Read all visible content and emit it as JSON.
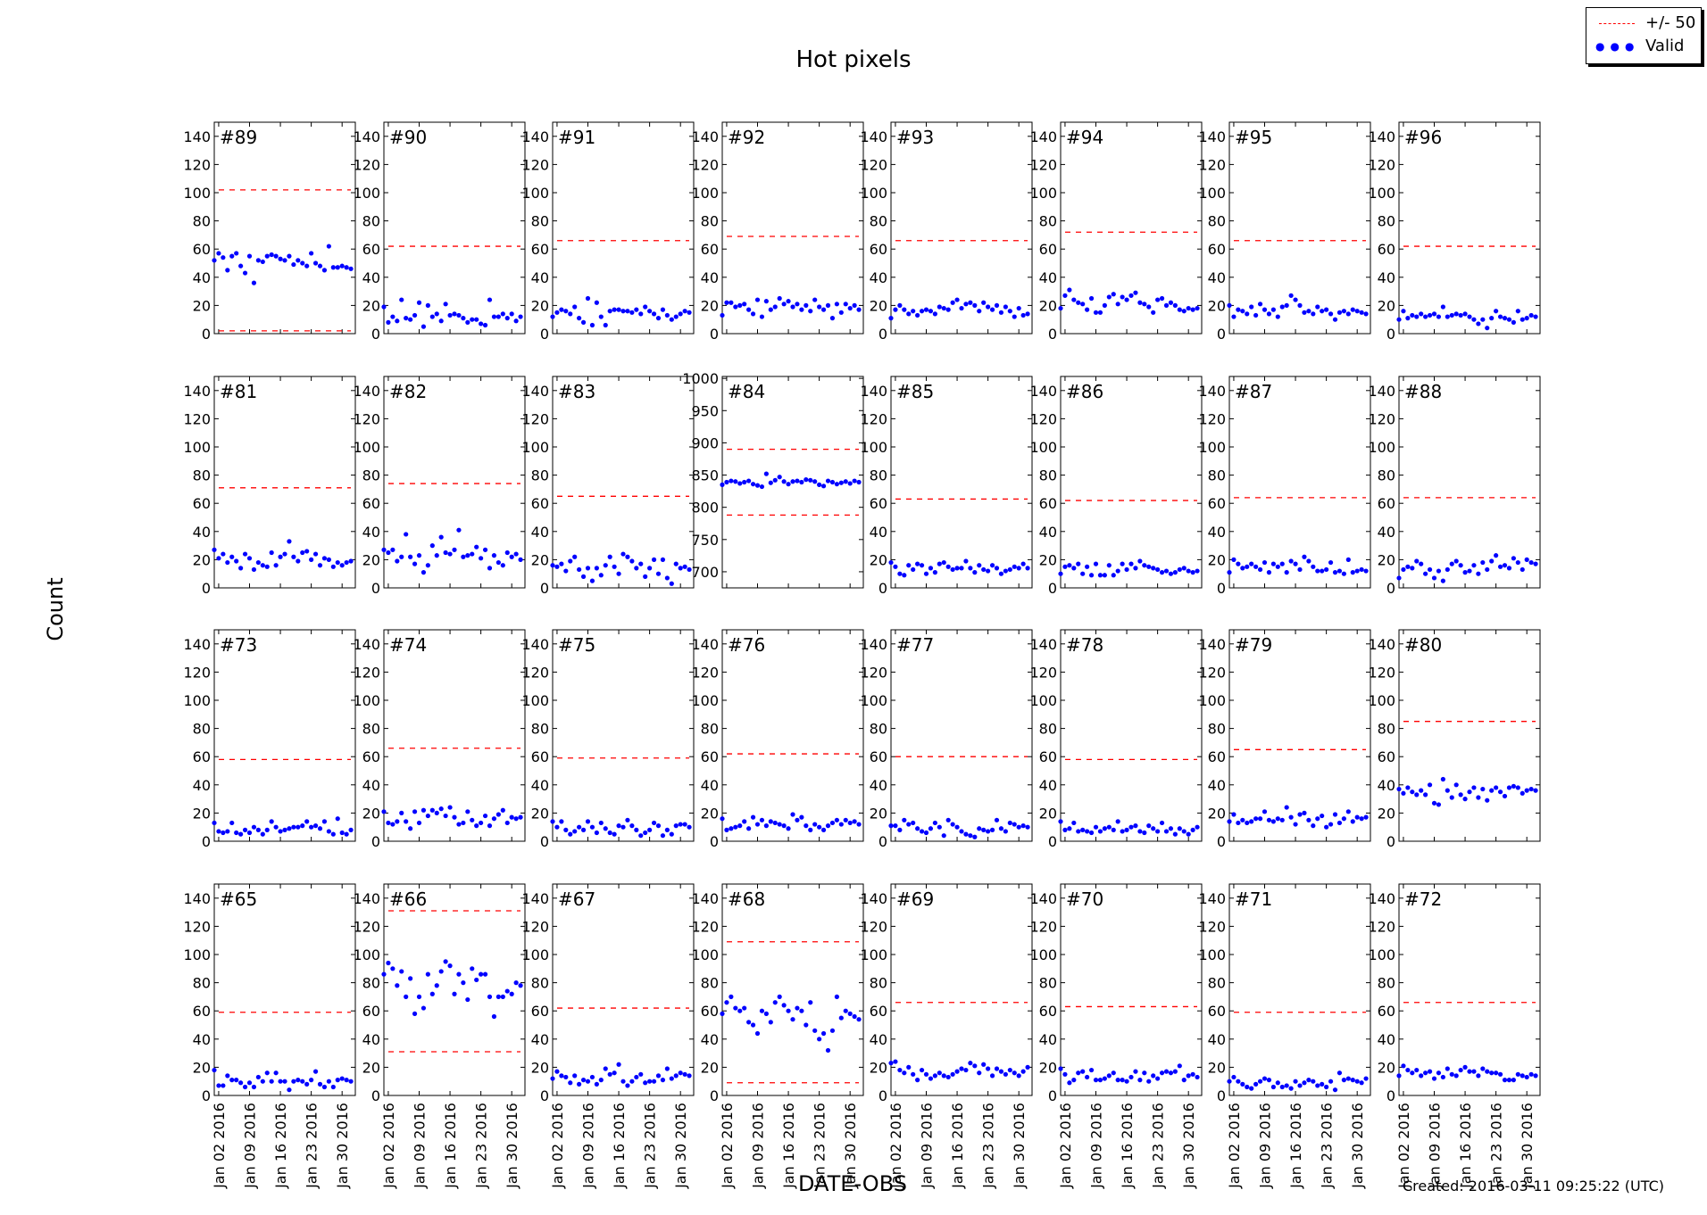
{
  "title": "Hot pixels",
  "ylabel": "Count",
  "xlabel": "DATE-OBS",
  "footer": "Created: 2016-03-11 09:25:22 (UTC)",
  "legend": {
    "threshold_label": "+/- 50",
    "valid_label": "Valid"
  },
  "colors": {
    "valid": "#0000ff",
    "threshold": "#ff0000",
    "frame": "#000000"
  },
  "chart_data": {
    "type": "scatter",
    "layout": "small multiples, 4 rows x 8 columns, shared x axis",
    "x_ticks": [
      "Jan 02 2016",
      "Jan 09 2016",
      "Jan 16 2016",
      "Jan 23 2016",
      "Jan 30 2016"
    ],
    "x_range": [
      "2016-01-01",
      "2016-02-02"
    ],
    "x_dates": [
      "2016-01-01",
      "2016-01-02",
      "2016-01-03",
      "2016-01-04",
      "2016-01-05",
      "2016-01-06",
      "2016-01-07",
      "2016-01-08",
      "2016-01-09",
      "2016-01-10",
      "2016-01-11",
      "2016-01-12",
      "2016-01-13",
      "2016-01-14",
      "2016-01-15",
      "2016-01-16",
      "2016-01-17",
      "2016-01-18",
      "2016-01-19",
      "2016-01-20",
      "2016-01-21",
      "2016-01-22",
      "2016-01-23",
      "2016-01-24",
      "2016-01-25",
      "2016-01-26",
      "2016-01-27",
      "2016-01-28",
      "2016-01-29",
      "2016-01-30",
      "2016-01-31",
      "2016-02-01"
    ],
    "default_y_ticks": [
      0,
      20,
      40,
      60,
      80,
      100,
      120,
      140
    ],
    "default_ylim": [
      0,
      150
    ],
    "panels": [
      {
        "label": "#89",
        "upper": 102,
        "lower": 2,
        "values": [
          52,
          57,
          54,
          45,
          55,
          57,
          48,
          43,
          55,
          36,
          52,
          51,
          55,
          56,
          55,
          53,
          52,
          55,
          49,
          52,
          50,
          48,
          57,
          50,
          48,
          45,
          62,
          47,
          47,
          48,
          47,
          46
        ]
      },
      {
        "label": "#90",
        "upper": 62,
        "lower": null,
        "values": [
          19,
          8,
          12,
          9,
          24,
          11,
          10,
          13,
          22,
          5,
          20,
          12,
          14,
          9,
          21,
          13,
          14,
          13,
          11,
          8,
          10,
          10,
          7,
          6,
          24,
          12,
          12,
          14,
          11,
          14,
          9,
          12
        ]
      },
      {
        "label": "#91",
        "upper": 66,
        "lower": null,
        "values": [
          12,
          15,
          17,
          16,
          14,
          19,
          11,
          8,
          25,
          6,
          22,
          12,
          6,
          16,
          17,
          17,
          16,
          16,
          15,
          17,
          14,
          19,
          16,
          14,
          11,
          17,
          13,
          10,
          12,
          14,
          16,
          15
        ]
      },
      {
        "label": "#92",
        "upper": 69,
        "lower": null,
        "values": [
          13,
          22,
          22,
          19,
          20,
          21,
          17,
          14,
          24,
          12,
          23,
          17,
          19,
          25,
          21,
          23,
          19,
          21,
          17,
          20,
          16,
          24,
          19,
          17,
          20,
          11,
          21,
          15,
          21,
          18,
          20,
          17
        ]
      },
      {
        "label": "#93",
        "upper": 66,
        "lower": null,
        "values": [
          11,
          17,
          20,
          17,
          14,
          16,
          13,
          16,
          17,
          16,
          14,
          19,
          18,
          17,
          22,
          24,
          18,
          21,
          22,
          20,
          16,
          22,
          19,
          17,
          20,
          15,
          19,
          16,
          12,
          18,
          13,
          14
        ]
      },
      {
        "label": "#94",
        "upper": 72,
        "lower": null,
        "values": [
          18,
          27,
          31,
          24,
          22,
          21,
          17,
          25,
          15,
          15,
          20,
          26,
          28,
          21,
          26,
          24,
          27,
          29,
          22,
          21,
          19,
          15,
          24,
          25,
          20,
          22,
          20,
          17,
          16,
          18,
          17,
          18
        ]
      },
      {
        "label": "#95",
        "upper": 66,
        "lower": null,
        "values": [
          20,
          12,
          17,
          16,
          14,
          19,
          13,
          21,
          17,
          14,
          17,
          12,
          19,
          20,
          27,
          24,
          20,
          15,
          16,
          14,
          19,
          16,
          17,
          14,
          10,
          15,
          16,
          14,
          17,
          16,
          15,
          14
        ]
      },
      {
        "label": "#96",
        "upper": 62,
        "lower": null,
        "values": [
          10,
          16,
          11,
          13,
          12,
          14,
          12,
          13,
          14,
          12,
          19,
          12,
          13,
          14,
          13,
          14,
          12,
          10,
          7,
          10,
          4,
          11,
          16,
          12,
          11,
          10,
          8,
          16,
          10,
          11,
          13,
          12
        ]
      },
      {
        "label": "#81",
        "upper": 71,
        "lower": null,
        "values": [
          27,
          21,
          24,
          18,
          22,
          19,
          14,
          24,
          21,
          13,
          18,
          16,
          15,
          25,
          16,
          22,
          24,
          33,
          22,
          19,
          25,
          26,
          20,
          24,
          16,
          21,
          20,
          15,
          18,
          16,
          18,
          19
        ]
      },
      {
        "label": "#82",
        "upper": 74,
        "lower": null,
        "values": [
          27,
          25,
          27,
          19,
          22,
          38,
          22,
          17,
          23,
          11,
          16,
          30,
          23,
          36,
          25,
          24,
          27,
          41,
          22,
          23,
          24,
          29,
          21,
          27,
          14,
          23,
          18,
          16,
          25,
          22,
          24,
          20
        ]
      },
      {
        "label": "#83",
        "upper": 65,
        "lower": null,
        "values": [
          16,
          15,
          17,
          12,
          19,
          22,
          13,
          8,
          14,
          5,
          14,
          9,
          16,
          22,
          15,
          10,
          24,
          22,
          19,
          14,
          17,
          8,
          14,
          20,
          10,
          20,
          7,
          3,
          17,
          14,
          15,
          13
        ]
      },
      {
        "label": "#84",
        "upper": 890,
        "lower": 788,
        "ylim": [
          675,
          1003
        ],
        "y_ticks": [
          700,
          750,
          800,
          850,
          900,
          950,
          1000
        ],
        "values": [
          835,
          839,
          841,
          840,
          837,
          839,
          841,
          836,
          834,
          832,
          852,
          838,
          842,
          847,
          840,
          836,
          840,
          841,
          839,
          843,
          842,
          840,
          835,
          833,
          841,
          839,
          836,
          838,
          840,
          837,
          841,
          839
        ]
      },
      {
        "label": "#85",
        "upper": 63,
        "lower": null,
        "values": [
          18,
          15,
          10,
          9,
          16,
          13,
          17,
          16,
          10,
          14,
          11,
          17,
          18,
          15,
          13,
          14,
          14,
          19,
          14,
          11,
          16,
          13,
          12,
          16,
          14,
          10,
          12,
          13,
          15,
          14,
          17,
          14
        ]
      },
      {
        "label": "#86",
        "upper": 62,
        "lower": null,
        "values": [
          10,
          15,
          16,
          14,
          17,
          10,
          15,
          9,
          17,
          9,
          9,
          16,
          9,
          12,
          17,
          13,
          17,
          14,
          19,
          16,
          15,
          14,
          13,
          11,
          12,
          10,
          11,
          13,
          14,
          12,
          11,
          12
        ]
      },
      {
        "label": "#87",
        "upper": 64,
        "lower": null,
        "values": [
          11,
          20,
          17,
          14,
          15,
          17,
          15,
          13,
          18,
          11,
          17,
          15,
          17,
          11,
          19,
          17,
          13,
          22,
          19,
          15,
          12,
          12,
          13,
          18,
          11,
          12,
          10,
          20,
          11,
          12,
          13,
          12
        ]
      },
      {
        "label": "#88",
        "upper": 64,
        "lower": null,
        "values": [
          7,
          13,
          15,
          14,
          19,
          17,
          10,
          13,
          7,
          12,
          5,
          13,
          17,
          19,
          16,
          11,
          12,
          16,
          10,
          18,
          13,
          19,
          23,
          15,
          16,
          14,
          21,
          18,
          13,
          20,
          18,
          17
        ]
      },
      {
        "label": "#73",
        "upper": 58,
        "lower": null,
        "values": [
          13,
          7,
          6,
          7,
          13,
          6,
          5,
          8,
          6,
          10,
          8,
          5,
          8,
          14,
          10,
          7,
          8,
          9,
          10,
          10,
          11,
          14,
          10,
          11,
          9,
          14,
          7,
          5,
          16,
          6,
          5,
          8
        ]
      },
      {
        "label": "#74",
        "upper": 66,
        "lower": null,
        "values": [
          21,
          13,
          12,
          14,
          20,
          14,
          9,
          21,
          13,
          22,
          18,
          22,
          20,
          23,
          18,
          24,
          17,
          12,
          13,
          21,
          15,
          11,
          13,
          18,
          11,
          16,
          19,
          22,
          13,
          17,
          16,
          17
        ]
      },
      {
        "label": "#75",
        "upper": 59,
        "lower": null,
        "values": [
          14,
          10,
          14,
          8,
          5,
          7,
          10,
          8,
          14,
          10,
          6,
          13,
          9,
          6,
          5,
          11,
          10,
          15,
          11,
          8,
          4,
          6,
          8,
          13,
          11,
          4,
          8,
          5,
          11,
          12,
          12,
          10
        ]
      },
      {
        "label": "#76",
        "upper": 62,
        "lower": null,
        "values": [
          16,
          8,
          9,
          10,
          11,
          14,
          9,
          17,
          12,
          15,
          11,
          14,
          13,
          12,
          11,
          9,
          19,
          15,
          17,
          11,
          8,
          12,
          10,
          8,
          11,
          13,
          15,
          12,
          15,
          13,
          14,
          12
        ]
      },
      {
        "label": "#77",
        "upper": 60,
        "lower": null,
        "values": [
          11,
          11,
          8,
          15,
          12,
          13,
          9,
          7,
          6,
          9,
          13,
          10,
          4,
          15,
          12,
          10,
          7,
          5,
          4,
          3,
          9,
          8,
          7,
          8,
          15,
          9,
          7,
          13,
          12,
          10,
          11,
          10
        ]
      },
      {
        "label": "#78",
        "upper": 58,
        "lower": null,
        "values": [
          14,
          8,
          9,
          13,
          7,
          8,
          7,
          6,
          10,
          7,
          9,
          10,
          8,
          14,
          7,
          8,
          10,
          11,
          7,
          6,
          11,
          9,
          7,
          13,
          7,
          9,
          5,
          9,
          7,
          5,
          8,
          10
        ]
      },
      {
        "label": "#79",
        "upper": 65,
        "lower": null,
        "values": [
          14,
          19,
          13,
          15,
          13,
          14,
          16,
          16,
          21,
          15,
          14,
          16,
          15,
          24,
          17,
          12,
          19,
          20,
          15,
          11,
          16,
          18,
          10,
          12,
          19,
          13,
          16,
          21,
          14,
          17,
          16,
          17
        ]
      },
      {
        "label": "#80",
        "upper": 85,
        "lower": null,
        "values": [
          37,
          34,
          38,
          35,
          33,
          36,
          33,
          40,
          27,
          26,
          44,
          36,
          31,
          40,
          33,
          30,
          35,
          38,
          31,
          37,
          29,
          36,
          38,
          35,
          32,
          38,
          39,
          38,
          34,
          36,
          37,
          36
        ]
      },
      {
        "label": "#65",
        "upper": 59,
        "lower": null,
        "values": [
          18,
          7,
          7,
          14,
          11,
          11,
          9,
          6,
          9,
          6,
          13,
          10,
          16,
          10,
          16,
          10,
          10,
          4,
          10,
          11,
          10,
          8,
          11,
          17,
          8,
          6,
          10,
          6,
          11,
          12,
          11,
          10
        ]
      },
      {
        "label": "#66",
        "upper": 131,
        "lower": 31,
        "values": [
          86,
          94,
          90,
          78,
          88,
          70,
          83,
          58,
          70,
          62,
          86,
          72,
          78,
          88,
          95,
          92,
          72,
          86,
          80,
          68,
          90,
          82,
          86,
          86,
          70,
          56,
          70,
          70,
          74,
          72,
          80,
          78
        ]
      },
      {
        "label": "#67",
        "upper": 62,
        "lower": null,
        "values": [
          12,
          17,
          14,
          13,
          9,
          14,
          8,
          11,
          10,
          13,
          8,
          11,
          19,
          15,
          16,
          22,
          10,
          7,
          10,
          13,
          15,
          9,
          10,
          10,
          14,
          11,
          19,
          12,
          14,
          16,
          15,
          14
        ]
      },
      {
        "label": "#68",
        "upper": 109,
        "lower": 9,
        "values": [
          58,
          66,
          70,
          62,
          60,
          62,
          52,
          50,
          44,
          60,
          58,
          52,
          66,
          70,
          64,
          60,
          54,
          62,
          60,
          50,
          66,
          46,
          40,
          44,
          32,
          46,
          70,
          55,
          60,
          58,
          56,
          54
        ]
      },
      {
        "label": "#69",
        "upper": 66,
        "lower": null,
        "values": [
          23,
          24,
          18,
          16,
          20,
          15,
          11,
          18,
          15,
          12,
          14,
          16,
          14,
          13,
          15,
          17,
          19,
          18,
          23,
          21,
          16,
          22,
          19,
          14,
          19,
          17,
          15,
          18,
          16,
          14,
          17,
          20
        ]
      },
      {
        "label": "#70",
        "upper": 63,
        "lower": null,
        "values": [
          19,
          15,
          9,
          11,
          16,
          17,
          13,
          18,
          11,
          11,
          12,
          14,
          16,
          11,
          11,
          10,
          13,
          17,
          11,
          16,
          10,
          14,
          12,
          16,
          17,
          16,
          17,
          21,
          11,
          14,
          15,
          13
        ]
      },
      {
        "label": "#71",
        "upper": 59,
        "lower": null,
        "values": [
          10,
          13,
          10,
          8,
          6,
          5,
          8,
          10,
          12,
          11,
          6,
          9,
          6,
          7,
          5,
          10,
          7,
          9,
          11,
          10,
          7,
          8,
          6,
          10,
          4,
          16,
          11,
          12,
          11,
          10,
          9,
          12
        ]
      },
      {
        "label": "#72",
        "upper": 66,
        "lower": null,
        "values": [
          14,
          21,
          18,
          16,
          18,
          14,
          16,
          17,
          12,
          16,
          13,
          19,
          15,
          14,
          18,
          20,
          17,
          17,
          14,
          19,
          17,
          16,
          16,
          15,
          11,
          11,
          11,
          15,
          14,
          13,
          15,
          14
        ]
      }
    ]
  }
}
